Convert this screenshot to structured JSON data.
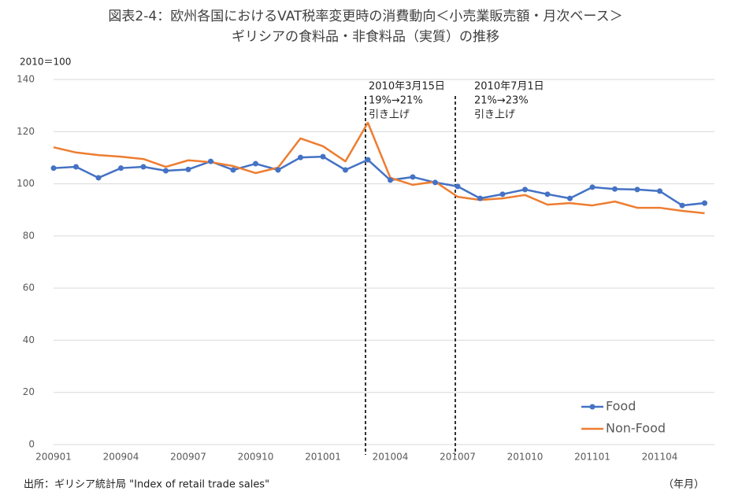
{
  "chart_data": {
    "type": "line",
    "title": [
      "図表2-4：欧州各国におけるVAT税率変更時の消費動向＜小売業販売額・月次ベース＞",
      "ギリシアの食料品・非食料品（実質）の推移"
    ],
    "y_unit": "2010＝100",
    "x_unit": "（年月）",
    "source": "出所：ギリシア統計局 \"Index of retail trade sales\"",
    "categories": [
      "200901",
      null,
      null,
      "200904",
      null,
      null,
      "200907",
      null,
      null,
      "200910",
      null,
      null,
      "201001",
      null,
      null,
      "201004",
      null,
      null,
      "201007",
      null,
      null,
      "201010",
      null,
      null,
      "201101",
      null,
      null,
      "201104",
      null,
      null
    ],
    "series": [
      {
        "name": "Food",
        "color": "#4472c4",
        "marker": true,
        "values": [
          106,
          106.5,
          102.3,
          106,
          106.5,
          105,
          105.5,
          108.6,
          105.3,
          107.7,
          105.3,
          110.1,
          110.4,
          105.3,
          109.2,
          101.4,
          102.6,
          100.5,
          99,
          94.4,
          96,
          97.8,
          96,
          94.4,
          98.7,
          98,
          97.8,
          97.2,
          91.7,
          92.6
        ]
      },
      {
        "name": "Non-Food",
        "color": "#ed7d31",
        "marker": false,
        "values": [
          114,
          112,
          111,
          110.4,
          109.5,
          106.5,
          109,
          108.3,
          106.8,
          104.1,
          106.2,
          117.4,
          114.4,
          108.6,
          123.4,
          102.3,
          99.6,
          100.8,
          95,
          93.8,
          94.4,
          95.7,
          92,
          92.6,
          91.7,
          93.2,
          90.8,
          90.8,
          89.6,
          88.7
        ]
      }
    ],
    "annotations": [
      {
        "lines": [
          "2010年3月15日",
          "19%→21%",
          "引き上げ"
        ]
      },
      {
        "lines": [
          "2010年7月1日",
          "21%→23%",
          "引き上げ"
        ]
      }
    ],
    "ylim": [
      0,
      140
    ],
    "yticks": [
      0,
      20,
      40,
      60,
      80,
      100,
      120,
      140
    ],
    "grid": true
  }
}
